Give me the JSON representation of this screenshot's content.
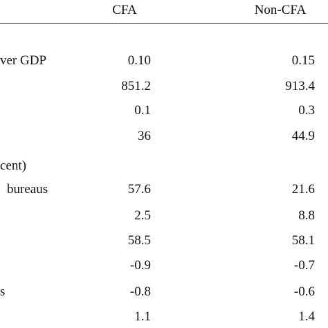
{
  "table": {
    "header": [
      "CFA",
      "Non-CFA"
    ],
    "rows": [
      [
        "ver GDP",
        "0.10",
        "0.15"
      ],
      [
        null,
        "851.2",
        "913.4"
      ],
      [
        null,
        "0.1",
        "0.3"
      ],
      [
        null,
        "36",
        "44.9"
      ],
      [
        "cent)",
        null,
        null
      ],
      [
        "bureaus",
        "57.6",
        "21.6"
      ],
      [
        null,
        "2.5",
        "8.8"
      ],
      [
        null,
        "58.5",
        "58.1"
      ],
      [
        null,
        "-0.9",
        "-0.7"
      ],
      [
        "s",
        "-0.8",
        "-0.6"
      ],
      [
        null,
        "1.1",
        "1.4"
      ]
    ]
  }
}
